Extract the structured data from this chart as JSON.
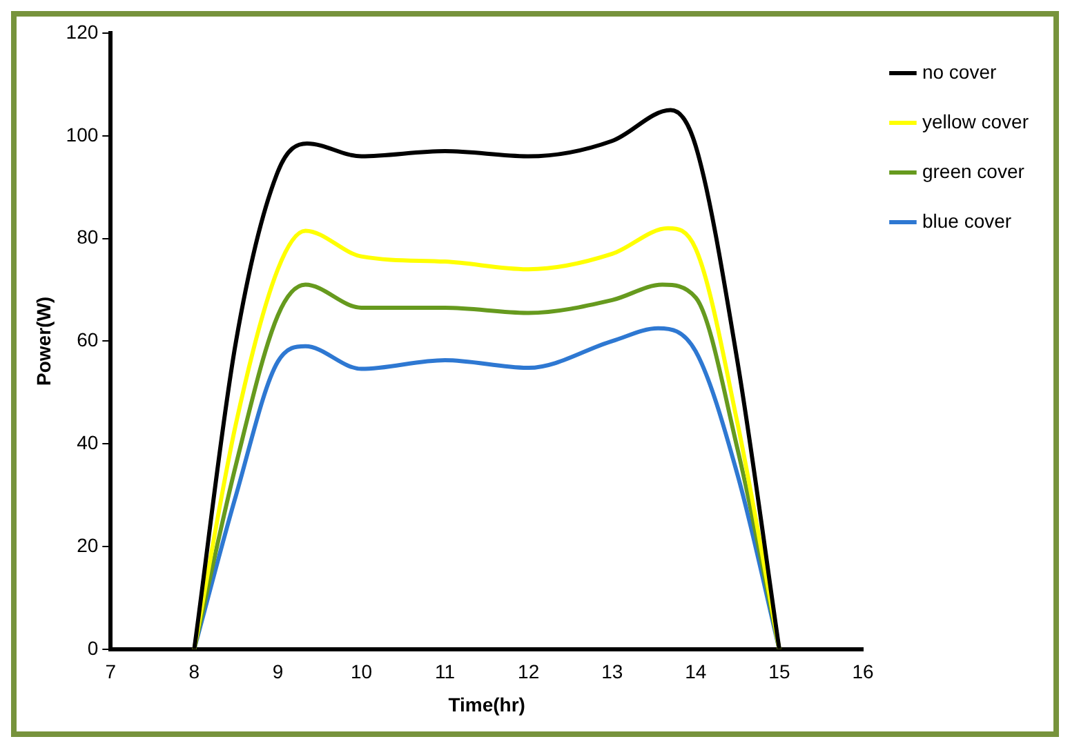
{
  "chart_data": {
    "type": "line",
    "xlabel": "Time(hr)",
    "ylabel": "Power(W)",
    "xlim": [
      7,
      16
    ],
    "xticks": [
      7,
      8,
      9,
      10,
      11,
      12,
      13,
      14,
      15,
      16
    ],
    "ylim": [
      0,
      120
    ],
    "yticks": [
      0,
      20,
      40,
      60,
      80,
      100,
      120
    ],
    "grid": false,
    "legend": "top right",
    "marker": "none",
    "line_style": "solid",
    "series": [
      {
        "name": "no cover",
        "color": "#000000",
        "x": [
          8,
          8.5,
          9,
          9.35,
          10,
          11,
          12,
          13,
          13.7,
          14,
          14.5,
          15
        ],
        "values": [
          0,
          60,
          93,
          98.5,
          96,
          97,
          96,
          99,
          105,
          98,
          56,
          0
        ]
      },
      {
        "name": "yellow cover",
        "color": "#ffff00",
        "x": [
          8,
          8.5,
          9,
          9.33,
          10,
          11,
          12,
          13,
          13.67,
          14,
          14.5,
          15
        ],
        "values": [
          0,
          44,
          74,
          81.5,
          76.5,
          75.5,
          74,
          77,
          82,
          78,
          44,
          0
        ]
      },
      {
        "name": "green cover",
        "color": "#669a1e",
        "x": [
          8,
          8.5,
          9,
          9.33,
          10,
          11,
          12,
          13,
          13.6,
          14,
          14.5,
          15
        ],
        "values": [
          0,
          36,
          65,
          71,
          66.5,
          66.5,
          65.5,
          68,
          71,
          68.5,
          39,
          0
        ]
      },
      {
        "name": "blue cover",
        "color": "#2e78d2",
        "x": [
          8,
          8.5,
          9,
          9.33,
          10,
          11,
          12,
          13,
          13.55,
          14,
          14.5,
          15
        ],
        "values": [
          0,
          30,
          56,
          59,
          54.6,
          56.3,
          54.8,
          60,
          62.5,
          58,
          34,
          0
        ]
      }
    ]
  }
}
